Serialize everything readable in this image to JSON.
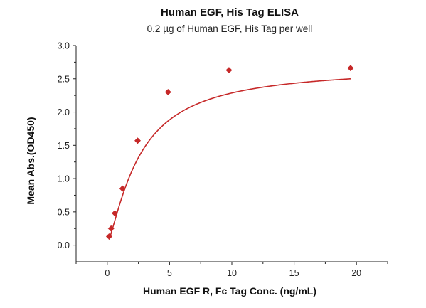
{
  "chart_data": {
    "type": "scatter",
    "title": "Human EGF, His Tag ELISA",
    "subtitle": "0.2 µg of Human EGF, His Tag per well",
    "xlabel": "Human EGF R, Fc Tag Conc. (ng/mL)",
    "ylabel": "Mean Abs.(OD450)",
    "xlim": [
      -2.5,
      22.5
    ],
    "ylim": [
      -0.25,
      3.0
    ],
    "x_ticks": [
      0,
      5,
      10,
      15,
      20
    ],
    "x_tick_labels": [
      "0",
      "5",
      "10",
      "15",
      "20"
    ],
    "y_ticks": [
      0.0,
      0.5,
      1.0,
      1.5,
      2.0,
      2.5,
      3.0
    ],
    "y_tick_labels": [
      "0.0",
      "0.5",
      "1.0",
      "1.5",
      "2.0",
      "2.5",
      "3.0"
    ],
    "grid": false,
    "marker": "diamond",
    "series": [
      {
        "x": [
          0.15,
          0.31,
          0.61,
          1.22,
          2.44,
          4.88,
          9.77,
          19.53
        ],
        "y": [
          0.13,
          0.25,
          0.48,
          0.85,
          1.57,
          2.3,
          2.63,
          2.66
        ],
        "color": "#c62828",
        "fit_curve": "four-parameter logistic"
      }
    ]
  }
}
